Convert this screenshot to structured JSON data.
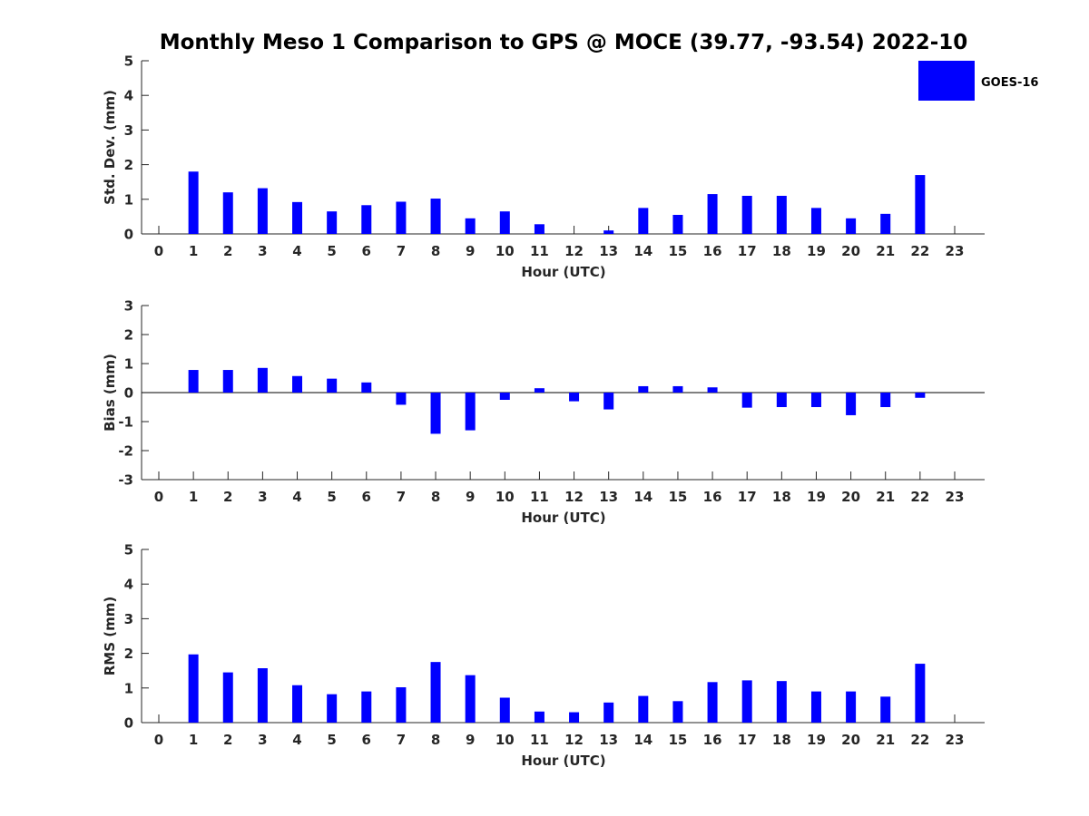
{
  "chart_data": [
    {
      "type": "bar",
      "title": "Monthly Meso 1 Comparison to GPS @ MOCE (39.77, -93.54) 2022-10",
      "xlabel": "Hour (UTC)",
      "ylabel": "Std. Dev. (mm)",
      "categories": [
        "0",
        "1",
        "2",
        "3",
        "4",
        "5",
        "6",
        "7",
        "8",
        "9",
        "10",
        "11",
        "12",
        "13",
        "14",
        "15",
        "16",
        "17",
        "18",
        "19",
        "20",
        "21",
        "22",
        "23"
      ],
      "ylim": [
        0,
        5
      ],
      "yticks": [
        0,
        1,
        2,
        3,
        4,
        5
      ],
      "series": [
        {
          "name": "GOES-16",
          "color": "#0000ff",
          "values": [
            null,
            1.8,
            1.2,
            1.32,
            0.92,
            0.65,
            0.83,
            0.93,
            1.02,
            0.45,
            0.65,
            0.28,
            null,
            0.1,
            0.75,
            0.55,
            1.15,
            1.1,
            1.1,
            0.75,
            0.45,
            0.58,
            1.7,
            null
          ]
        }
      ],
      "legend": {
        "label": "GOES-16",
        "placement": "top-right"
      }
    },
    {
      "type": "bar",
      "xlabel": "Hour (UTC)",
      "ylabel": "Bias (mm)",
      "categories": [
        "0",
        "1",
        "2",
        "3",
        "4",
        "5",
        "6",
        "7",
        "8",
        "9",
        "10",
        "11",
        "12",
        "13",
        "14",
        "15",
        "16",
        "17",
        "18",
        "19",
        "20",
        "21",
        "22",
        "23"
      ],
      "ylim": [
        -3,
        3
      ],
      "yticks": [
        -3,
        -2,
        -1,
        0,
        1,
        2,
        3
      ],
      "zero_line": true,
      "series": [
        {
          "name": "GOES-16",
          "color": "#0000ff",
          "values": [
            null,
            0.78,
            0.78,
            0.85,
            0.57,
            0.48,
            0.35,
            -0.42,
            -1.42,
            -1.3,
            -0.25,
            0.15,
            -0.3,
            -0.58,
            0.22,
            0.22,
            0.18,
            -0.52,
            -0.5,
            -0.5,
            -0.78,
            -0.5,
            -0.18,
            null
          ]
        }
      ]
    },
    {
      "type": "bar",
      "xlabel": "Hour (UTC)",
      "ylabel": "RMS (mm)",
      "categories": [
        "0",
        "1",
        "2",
        "3",
        "4",
        "5",
        "6",
        "7",
        "8",
        "9",
        "10",
        "11",
        "12",
        "13",
        "14",
        "15",
        "16",
        "17",
        "18",
        "19",
        "20",
        "21",
        "22",
        "23"
      ],
      "ylim": [
        0,
        5
      ],
      "yticks": [
        0,
        1,
        2,
        3,
        4,
        5
      ],
      "series": [
        {
          "name": "GOES-16",
          "color": "#0000ff",
          "values": [
            null,
            1.97,
            1.45,
            1.57,
            1.08,
            0.82,
            0.9,
            1.02,
            1.75,
            1.37,
            0.72,
            0.32,
            0.3,
            0.58,
            0.77,
            0.62,
            1.17,
            1.22,
            1.2,
            0.9,
            0.9,
            0.75,
            1.7,
            null
          ]
        }
      ]
    }
  ]
}
